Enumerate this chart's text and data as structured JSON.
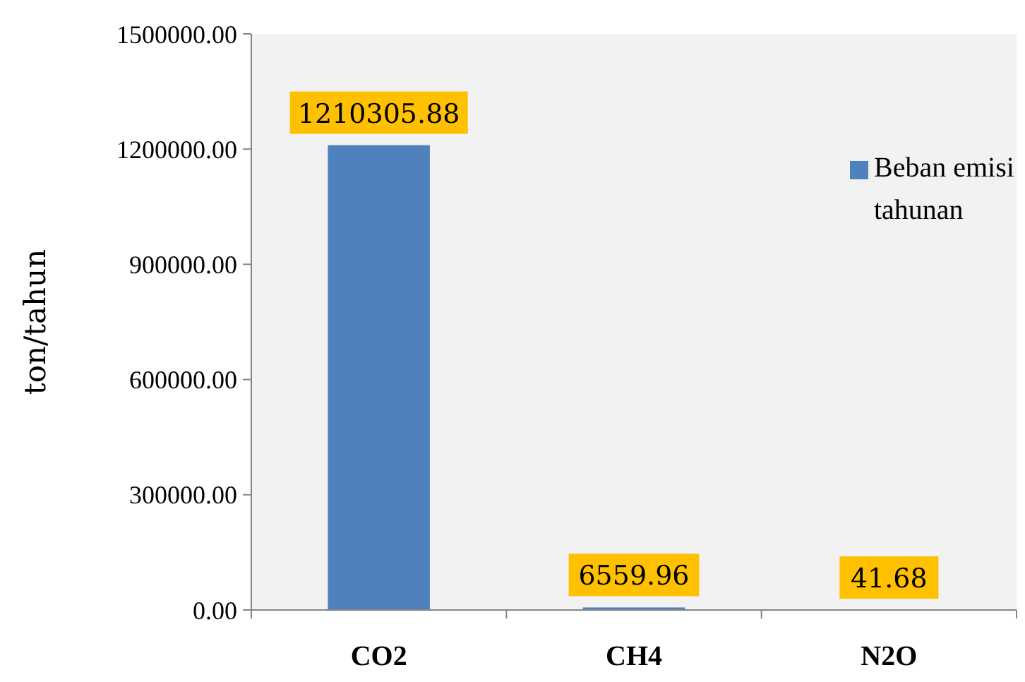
{
  "chart_data": {
    "type": "bar",
    "ylabel": "ton/tahun",
    "categories": [
      "CO2",
      "CH4",
      "N2O"
    ],
    "series": [
      {
        "name": "Beban emisi tahunan",
        "color": "#4f81bd",
        "values": [
          1210305.88,
          6559.96,
          41.68
        ]
      }
    ],
    "ylim": [
      0,
      1500000
    ],
    "yticks": [
      {
        "value": 0,
        "label": "0.00"
      },
      {
        "value": 300000,
        "label": "300000.00"
      },
      {
        "value": 600000,
        "label": "600000.00"
      },
      {
        "value": 900000,
        "label": "900000.00"
      },
      {
        "value": 1200000,
        "label": "1200000.00"
      },
      {
        "value": 1500000,
        "label": "1500000.00"
      }
    ],
    "data_labels": true,
    "legend": "top right",
    "grid": false
  }
}
